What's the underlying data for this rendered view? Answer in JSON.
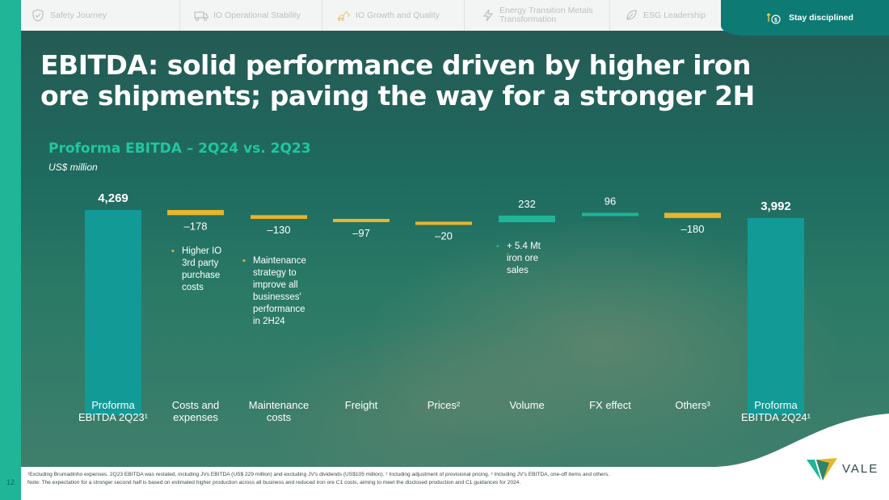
{
  "nav": {
    "items": [
      {
        "label": "Safety Journey",
        "icon": "shield-check-icon"
      },
      {
        "label": "IO Operational Stability",
        "icon": "truck-icon"
      },
      {
        "label": "IO Growth and Quality",
        "icon": "excavator-icon"
      },
      {
        "label": "Energy Transition Metals Transformation",
        "icon": "lightning-icon"
      },
      {
        "label": "ESG Leadership",
        "icon": "leaf-icon"
      }
    ],
    "active": {
      "label": "Stay disciplined",
      "icon": "money-arrows-icon"
    }
  },
  "title": "EBITDA: solid performance driven by higher iron ore shipments; paving the way for a stronger 2H",
  "chart_title": "Proforma EBITDA – 2Q24 vs. 2Q23",
  "units": "US$ million",
  "colors": {
    "total": "#119a96",
    "negative": "#e8b52a",
    "positive": "#1fb596",
    "accent_text": "#20c7a0"
  },
  "chart_data": {
    "type": "bar",
    "subtype": "waterfall",
    "title": "Proforma EBITDA – 2Q24 vs. 2Q23",
    "ylabel": "US$ million",
    "categories": [
      "Proforma EBITDA 2Q23¹",
      "Costs and expenses",
      "Maintenance costs",
      "Freight",
      "Prices²",
      "Volume",
      "FX effect",
      "Others³",
      "Proforma EBITDA 2Q24¹"
    ],
    "values": [
      4269,
      -178,
      -130,
      -97,
      -20,
      232,
      96,
      -180,
      3992
    ],
    "value_labels": [
      "4,269",
      "–178",
      "–130",
      "–97",
      "–20",
      "232",
      "96",
      "–180",
      "3,992"
    ],
    "kinds": [
      "total",
      "negative",
      "negative",
      "negative",
      "negative",
      "positive",
      "positive",
      "negative",
      "total"
    ],
    "category_lines": [
      [
        "Proforma",
        "EBITDA 2Q23¹"
      ],
      [
        "Costs and",
        "expenses"
      ],
      [
        "Maintenance",
        "costs"
      ],
      [
        "Freight"
      ],
      [
        "Prices²"
      ],
      [
        "Volume"
      ],
      [
        "FX effect"
      ],
      [
        "Others³"
      ],
      [
        "Proforma",
        "EBITDA 2Q24¹"
      ]
    ],
    "grid": false
  },
  "notes": [
    {
      "lines": [
        "Higher IO",
        "3rd party",
        "purchase",
        "costs"
      ]
    },
    {
      "lines": [
        "Maintenance",
        "strategy to",
        "improve all",
        "businesses'",
        "performance",
        "in 2H24"
      ]
    },
    {
      "lines": [
        "+ 5.4 Mt",
        "iron ore",
        "sales"
      ]
    }
  ],
  "footer": {
    "line1": "¹Excluding Brumadinho expenses. 2Q23 EBITDA was restated, including JVs EBITDA (US$ 229 million) and excluding JV's dividends (US$105 million). ² Including adjustment of provisional pricing. ³ Including JV's EBITDA, one-off items and others.",
    "line2": "Note: The expectation for a stronger second half is based on estimated higher production across all business and reduced iron ore C1 costs, aiming to meet the disclosed production and C1 guidances for 2024."
  },
  "slide_number": "12",
  "logo_text": "VALE"
}
